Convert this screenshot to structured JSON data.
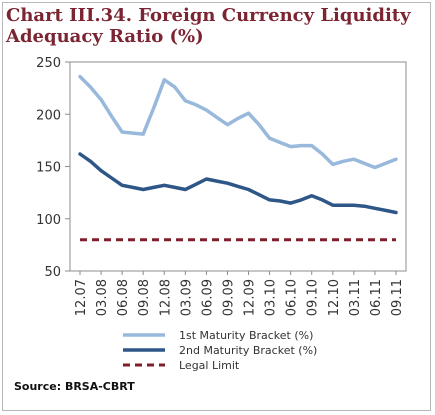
{
  "title_lines": [
    "Chart III.34. Foreign Currency Liquidity",
    "Adequacy Ratio (%)"
  ],
  "source": "Source: BRSA-CBRT",
  "colors": {
    "title": "#7b2432",
    "series1": "#98b8dc",
    "series2": "#2e5787",
    "legal": "#7e1f2a"
  },
  "chart_data": {
    "type": "line",
    "ylim": [
      50,
      250
    ],
    "yticks": [
      50,
      100,
      150,
      200,
      250
    ],
    "x_tick_labels": [
      "12.07",
      "03.08",
      "06.08",
      "09.08",
      "12.08",
      "03.09",
      "06.09",
      "09.09",
      "12.09",
      "03.10",
      "06.10",
      "09.10",
      "12.10",
      "03.11",
      "06.11",
      "09.11"
    ],
    "x": [
      "12.07",
      "",
      "03.08",
      "",
      "06.08",
      "",
      "09.08",
      "",
      "12.08",
      "",
      "03.09",
      "",
      "06.09",
      "",
      "09.09",
      "",
      "12.09",
      "",
      "03.10",
      "",
      "06.10",
      "",
      "09.10",
      "",
      "12.10",
      "",
      "03.11",
      "",
      "06.11",
      "",
      "09.11"
    ],
    "series": [
      {
        "name": "1st Maturity Bracket (%)",
        "style": "solid",
        "values": [
          236,
          226,
          214,
          198,
          183,
          182,
          181,
          206,
          233,
          226,
          213,
          209,
          204,
          197,
          190,
          196,
          201,
          190,
          177,
          173,
          169,
          170,
          170,
          162,
          152,
          155,
          157,
          153,
          149,
          153,
          157
        ]
      },
      {
        "name": "2nd Maturity Bracket (%)",
        "style": "solid",
        "values": [
          162,
          155,
          146,
          139,
          132,
          130,
          128,
          130,
          132,
          130,
          128,
          133,
          138,
          136,
          134,
          131,
          128,
          123,
          118,
          117,
          115,
          118,
          122,
          118,
          113,
          113,
          113,
          112,
          110,
          108,
          106
        ]
      },
      {
        "name": "Legal Limit",
        "style": "dashed",
        "values": [
          80,
          80,
          80,
          80,
          80,
          80,
          80,
          80,
          80,
          80,
          80,
          80,
          80,
          80,
          80,
          80,
          80,
          80,
          80,
          80,
          80,
          80,
          80,
          80,
          80,
          80,
          80,
          80,
          80,
          80,
          80
        ]
      }
    ],
    "grid": false,
    "legend_position": "bottom"
  }
}
